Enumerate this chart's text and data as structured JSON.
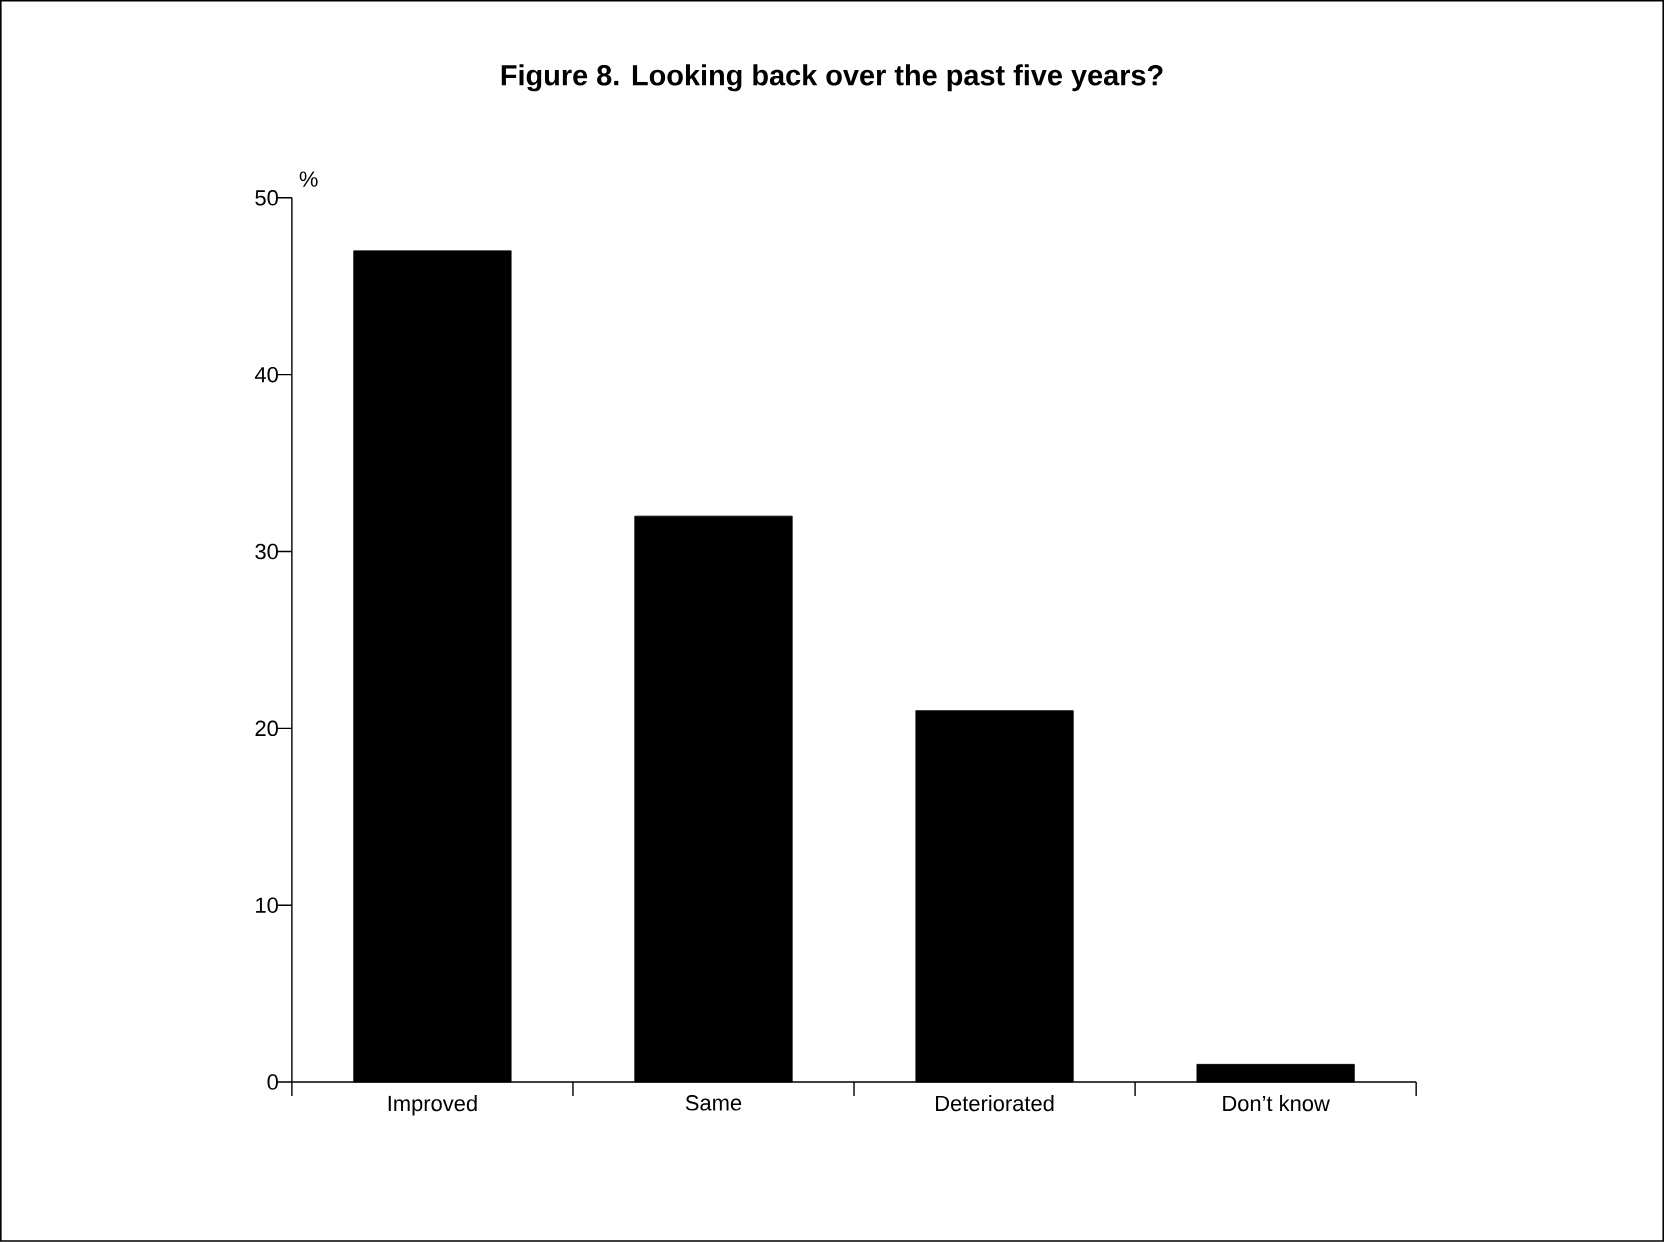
{
  "chart_data": {
    "type": "bar",
    "title": "Figure 8. Looking back over the past five years?",
    "ylabel": "%",
    "categories": [
      "Improved",
      "Same",
      "Deteriorated",
      "Don’t know"
    ],
    "values": [
      47,
      32,
      21,
      1
    ],
    "color": "#000000",
    "ylim": [
      0,
      50
    ],
    "yticks": [
      0,
      10,
      20,
      30,
      40,
      50
    ],
    "grid": false
  }
}
